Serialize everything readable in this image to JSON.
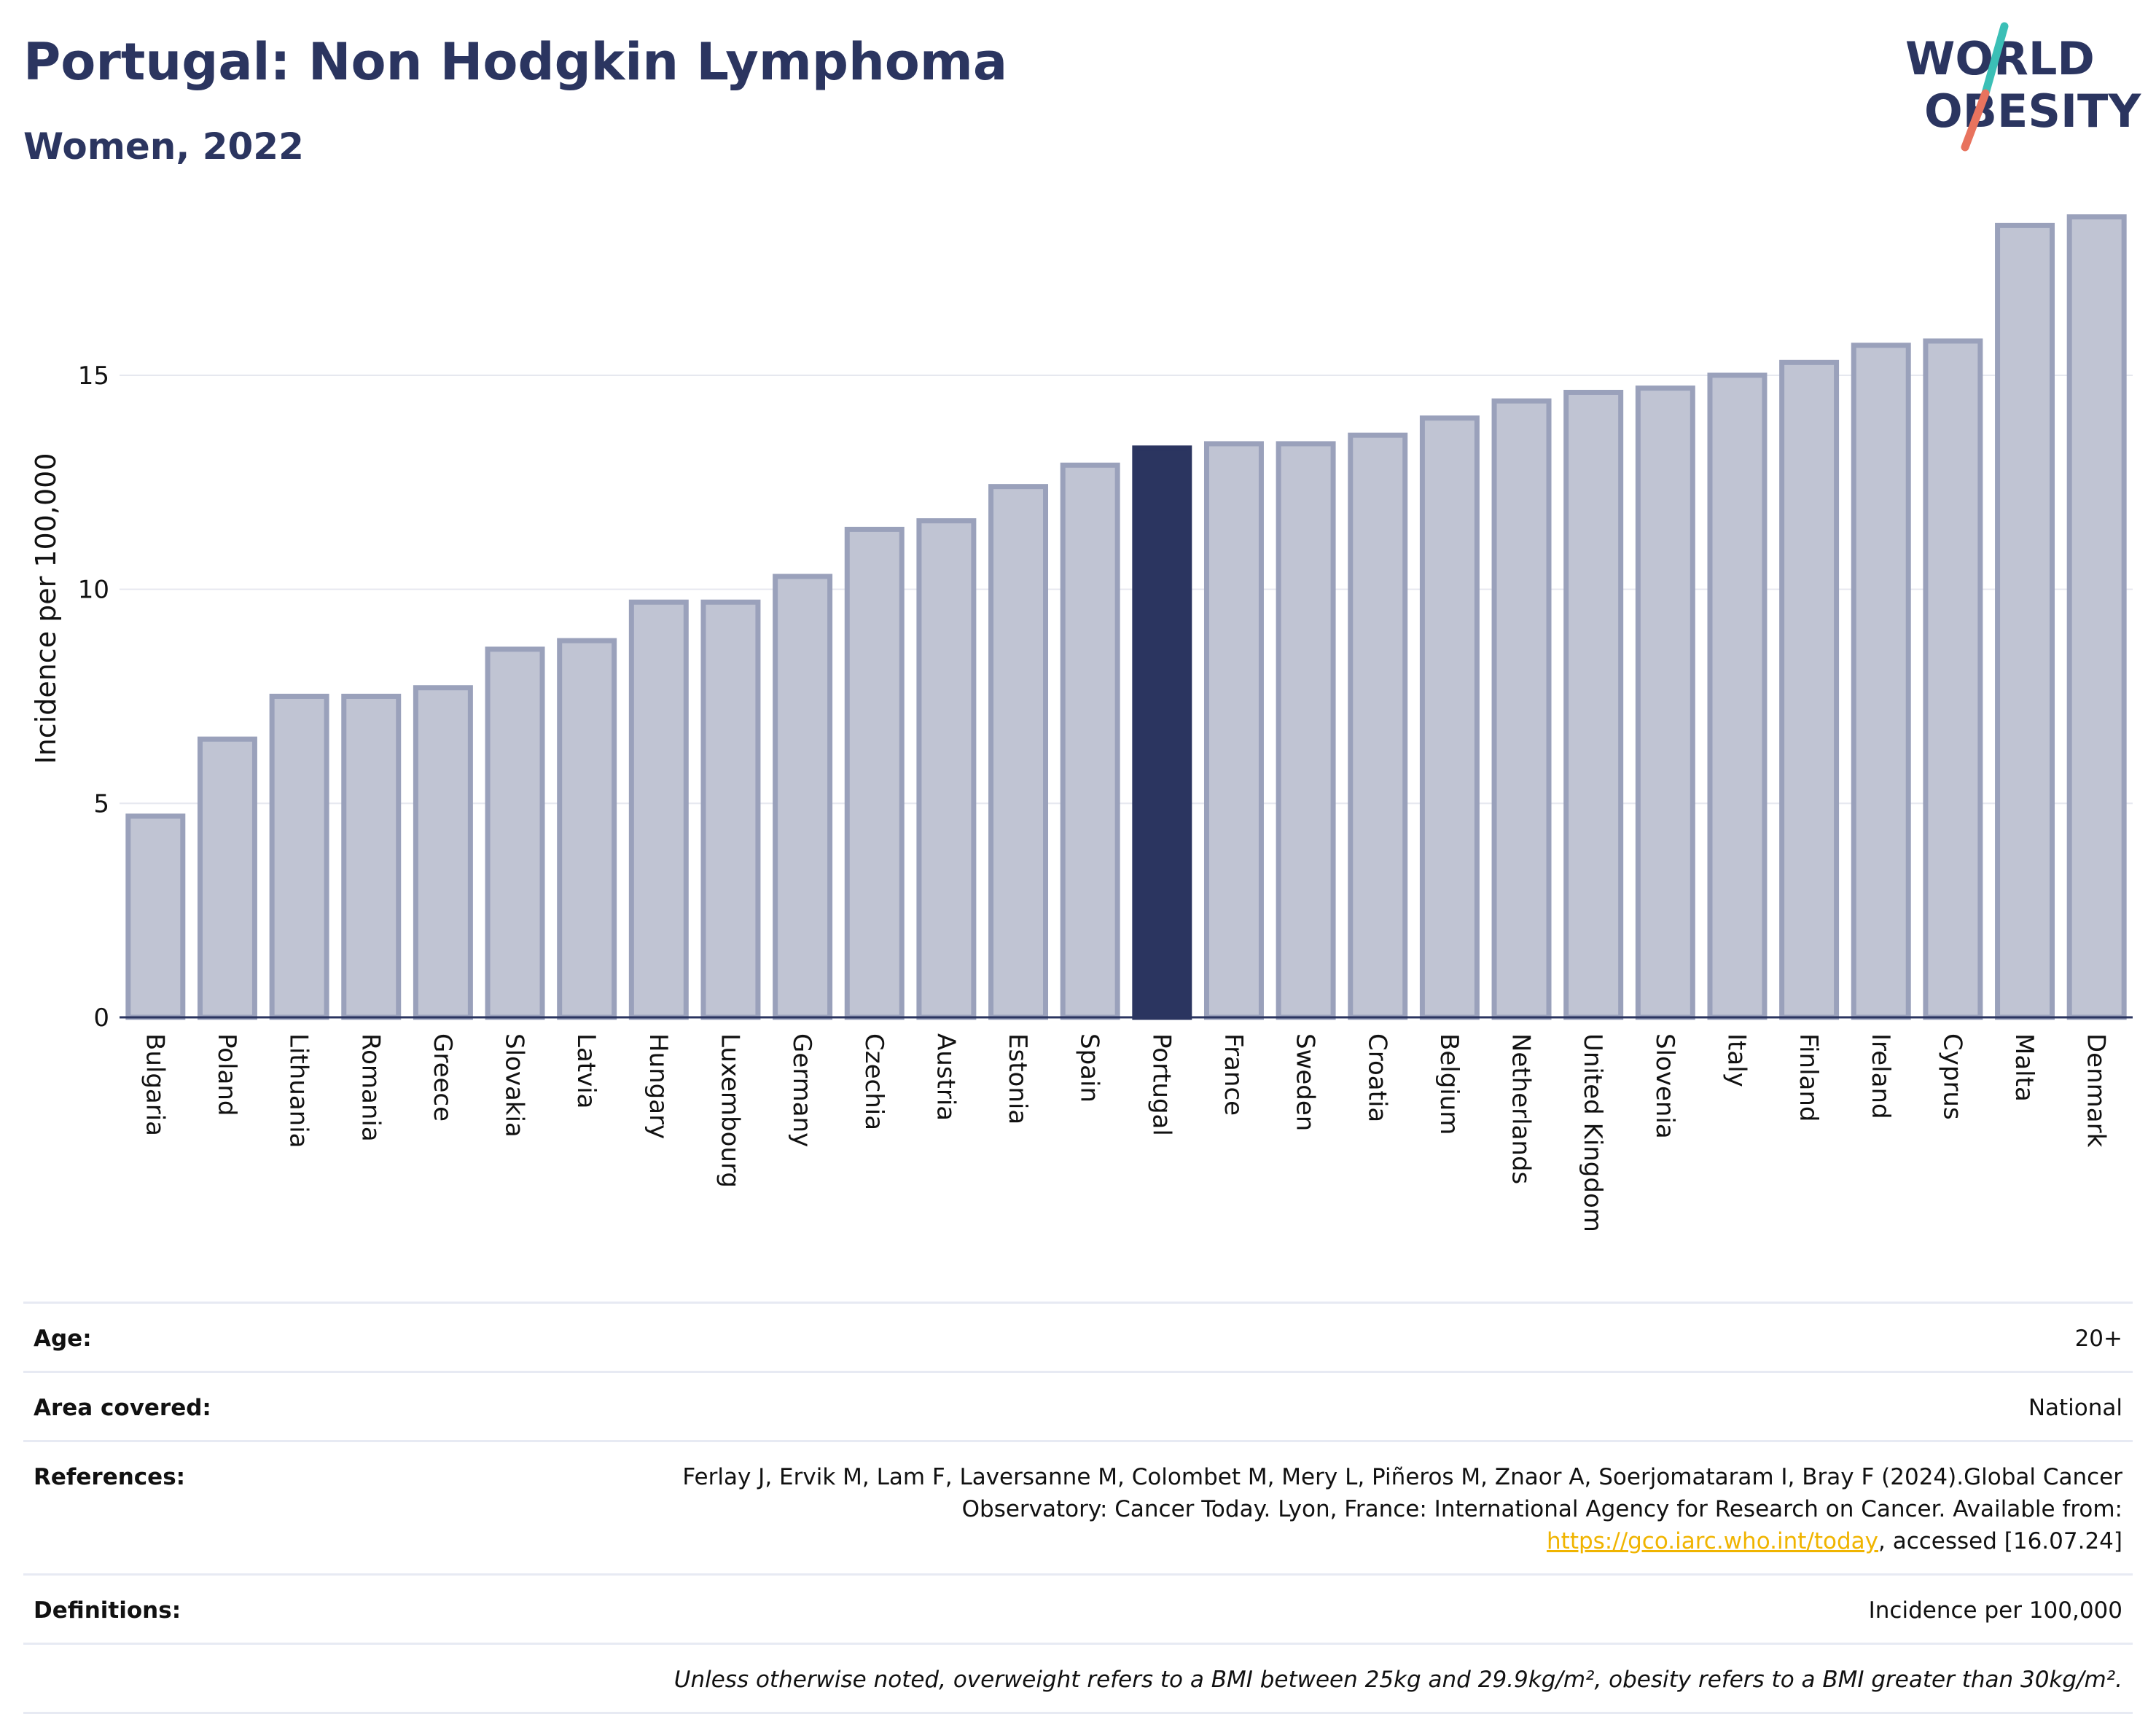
{
  "header": {
    "title": "Portugal: Non Hodgkin Lymphoma",
    "subtitle": "Women, 2022",
    "logo_line1": "WORLD",
    "logo_line2": "OBESITY"
  },
  "colors": {
    "text": "#2b3560",
    "bar_default": "#c0c4d3",
    "bar_default_border": "#9aa1bb",
    "bar_highlight": "#2b3560",
    "grid": "#e6e8ef",
    "logo_teal": "#3bbfb6",
    "logo_coral": "#e8735e",
    "link": "#f0b400"
  },
  "chart_data": {
    "type": "bar",
    "ylabel": "Incidence per 100,000",
    "ylim": [
      0,
      19
    ],
    "yticks": [
      0,
      5,
      10,
      15
    ],
    "highlight": "Portugal",
    "categories": [
      "Bulgaria",
      "Poland",
      "Lithuania",
      "Romania",
      "Greece",
      "Slovakia",
      "Latvia",
      "Hungary",
      "Luxembourg",
      "Germany",
      "Czechia",
      "Austria",
      "Estonia",
      "Spain",
      "Portugal",
      "France",
      "Sweden",
      "Croatia",
      "Belgium",
      "Netherlands",
      "United Kingdom",
      "Slovenia",
      "Italy",
      "Finland",
      "Ireland",
      "Cyprus",
      "Malta",
      "Denmark"
    ],
    "values": [
      4.7,
      6.5,
      7.5,
      7.5,
      7.7,
      8.6,
      8.8,
      9.7,
      9.7,
      10.3,
      11.4,
      11.6,
      12.4,
      12.9,
      13.3,
      13.4,
      13.4,
      13.6,
      14.0,
      14.4,
      14.6,
      14.7,
      15.0,
      15.3,
      15.7,
      15.8,
      18.5,
      18.7
    ]
  },
  "info": {
    "age_label": "Age:",
    "age_value": "20+",
    "area_label": "Area covered:",
    "area_value": "National",
    "references_label": "References:",
    "references_text": "Ferlay J, Ervik M, Lam F, Laversanne M, Colombet M, Mery L, Piñeros M, Znaor A, Soerjomataram I, Bray F (2024).Global Cancer Observatory: Cancer Today. Lyon, France: International Agency for Research on Cancer. Available from: ",
    "references_link": "https://gco.iarc.who.int/today",
    "references_suffix": ", accessed [16.07.24]",
    "definitions_label": "Definitions:",
    "definitions_value": "Incidence per 100,000",
    "note": "Unless otherwise noted, overweight refers to a BMI between 25kg and 29.9kg/m², obesity refers to a BMI greater than 30kg/m²."
  }
}
